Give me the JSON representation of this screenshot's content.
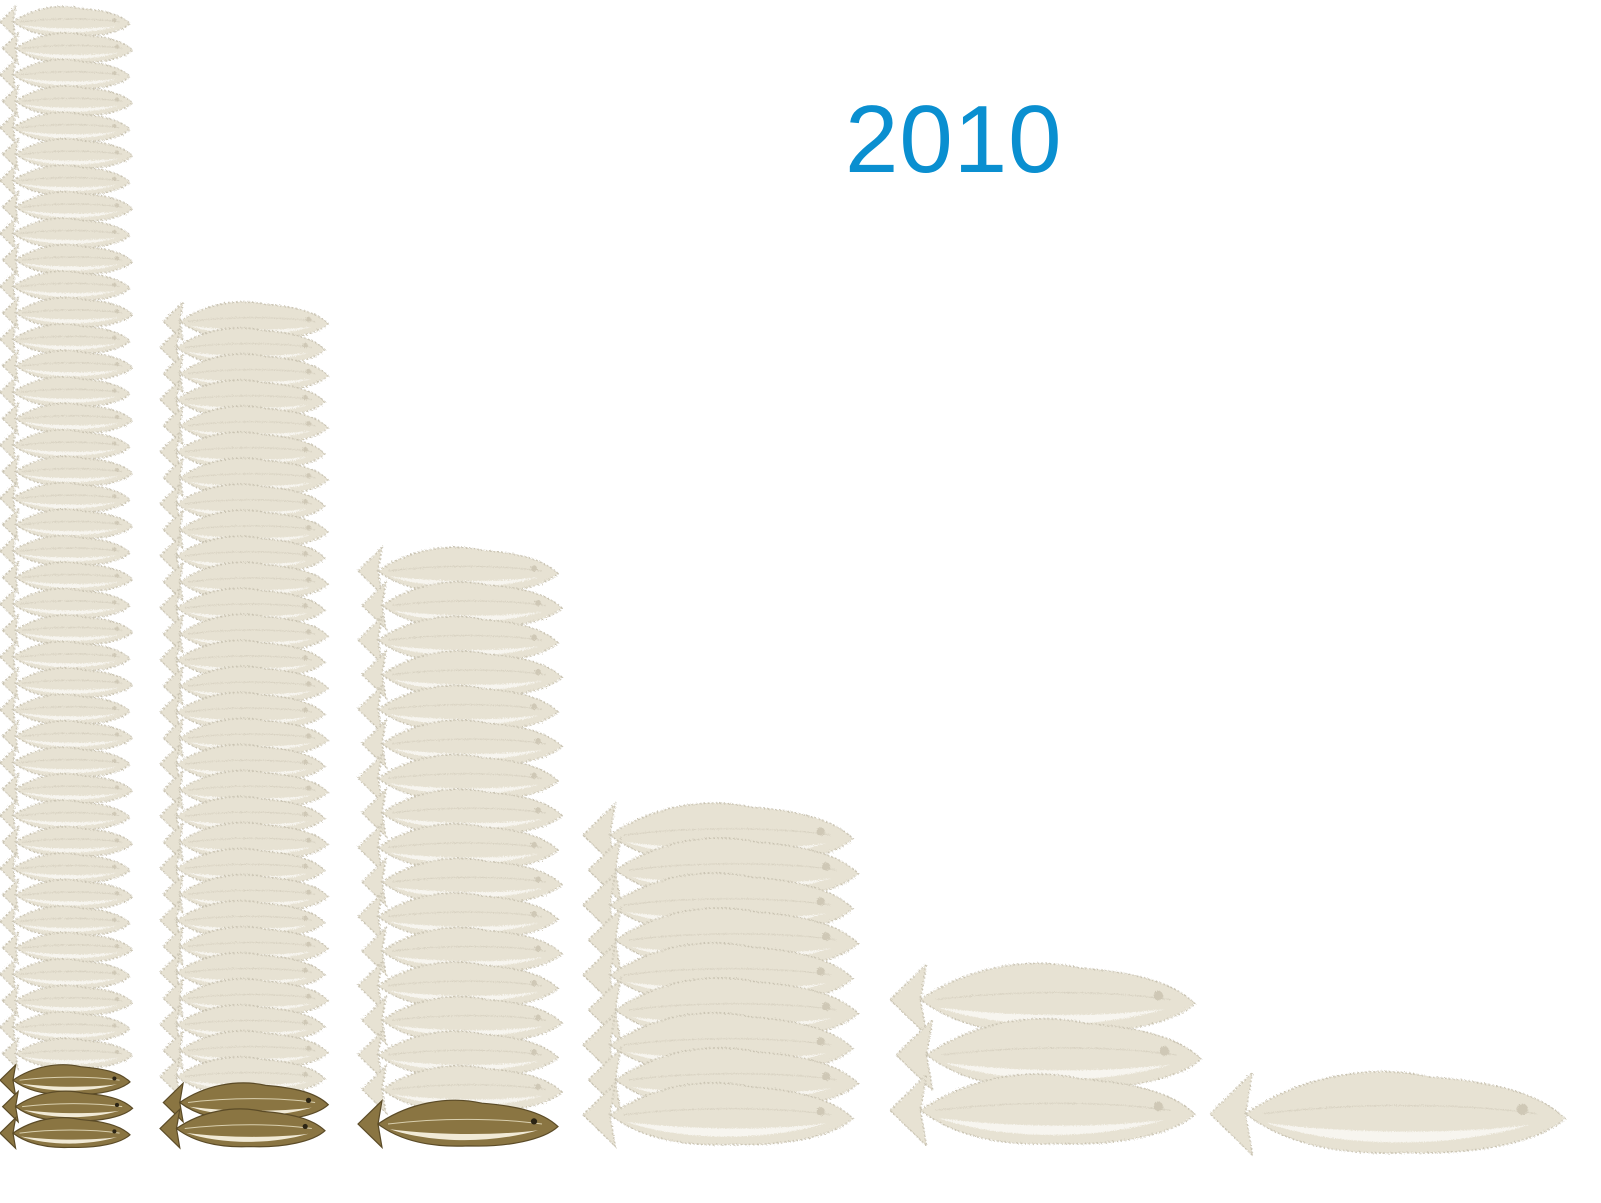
{
  "title": {
    "text": "2010",
    "color": "#0a8fd0"
  },
  "icon": "cod-fish-icon",
  "colors": {
    "faded_fish": "#e7e2d3",
    "faded_fish_edge": "#c9c3b2",
    "faded_fish_belly": "#f7f5ef",
    "vivid_fish_back": "#8a7542",
    "vivid_fish_belly": "#f1ead6",
    "vivid_fish_line": "#d9cfae"
  },
  "stacks": [
    {
      "name": "stack-1",
      "faded": 40,
      "vivid": 3
    },
    {
      "name": "stack-2",
      "faded": 30,
      "vivid": 2
    },
    {
      "name": "stack-3",
      "faded": 16,
      "vivid": 1
    },
    {
      "name": "stack-4",
      "faded": 9,
      "vivid": 0
    },
    {
      "name": "stack-5",
      "faded": 3,
      "vivid": 0
    },
    {
      "name": "stack-6",
      "faded": 1,
      "vivid": 0
    }
  ]
}
